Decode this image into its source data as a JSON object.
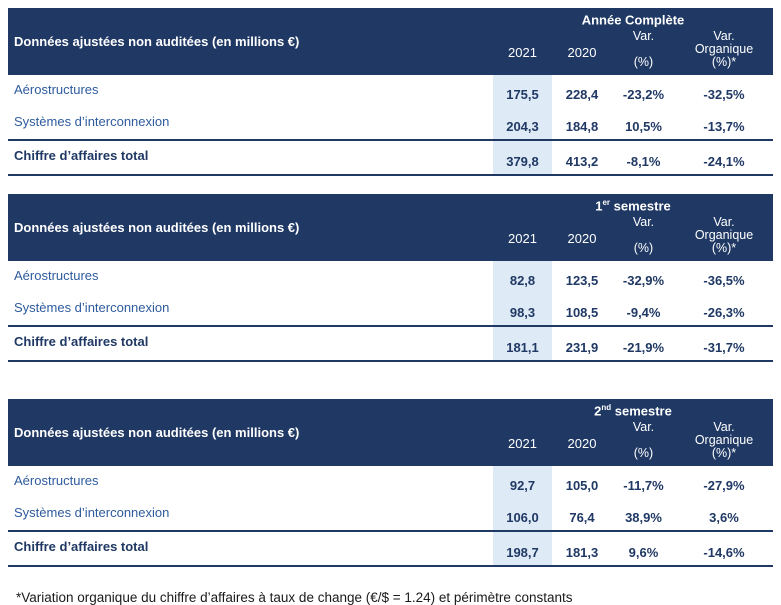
{
  "colors": {
    "header_bg": "#1F3864",
    "header_text": "#FFFFFF",
    "row_label_text": "#2E5B9E",
    "value_text": "#1F3864",
    "highlight_2021_column": "#DEEAF6",
    "border": "#1F3864"
  },
  "shared": {
    "row_header_label": "Données ajustées non auditées (en millions €)",
    "columns": {
      "year_2021": "2021",
      "year_2020": "2020",
      "var_line1": "Var.",
      "var_line2": "(%)",
      "varorg_line1": "Var.",
      "varorg_line2": "Organique",
      "varorg_line3": "(%)*"
    }
  },
  "tables": [
    {
      "period": {
        "prefix": "Année Complète",
        "sup": "",
        "suffix": ""
      },
      "rows": [
        {
          "label": "Aérostructures",
          "y2021": "175,5",
          "y2020": "228,4",
          "var": "-23,2%",
          "var_org": "-32,5%"
        },
        {
          "label": "Systèmes d’interconnexion",
          "y2021": "204,3",
          "y2020": "184,8",
          "var": "10,5%",
          "var_org": "-13,7%"
        }
      ],
      "total": {
        "label": "Chiffre d’affaires total",
        "y2021": "379,8",
        "y2020": "413,2",
        "var": "-8,1%",
        "var_org": "-24,1%"
      }
    },
    {
      "period": {
        "prefix": "1",
        "sup": "er",
        "suffix": " semestre"
      },
      "rows": [
        {
          "label": "Aérostructures",
          "y2021": "82,8",
          "y2020": "123,5",
          "var": "-32,9%",
          "var_org": "-36,5%"
        },
        {
          "label": "Systèmes d’interconnexion",
          "y2021": "98,3",
          "y2020": "108,5",
          "var": "-9,4%",
          "var_org": "-26,3%"
        }
      ],
      "total": {
        "label": "Chiffre d’affaires total",
        "y2021": "181,1",
        "y2020": "231,9",
        "var": "-21,9%",
        "var_org": "-31,7%"
      }
    },
    {
      "period": {
        "prefix": "2",
        "sup": "nd",
        "suffix": " semestre"
      },
      "rows": [
        {
          "label": "Aérostructures",
          "y2021": "92,7",
          "y2020": "105,0",
          "var": "-11,7%",
          "var_org": "-27,9%"
        },
        {
          "label": "Systèmes d’interconnexion",
          "y2021": "106,0",
          "y2020": "76,4",
          "var": "38,9%",
          "var_org": "3,6%"
        }
      ],
      "total": {
        "label": "Chiffre d’affaires total",
        "y2021": "198,7",
        "y2020": "181,3",
        "var": "9,6%",
        "var_org": "-14,6%"
      }
    }
  ],
  "footnote": "*Variation organique du chiffre d’affaires à taux de change (€/$ = 1.24) et périmètre constants"
}
